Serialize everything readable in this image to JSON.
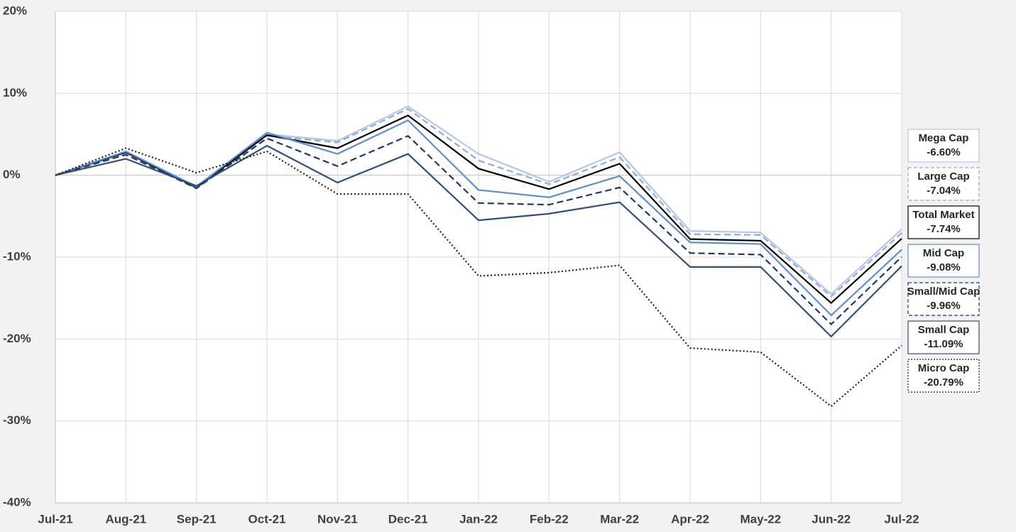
{
  "chart_data": {
    "type": "line",
    "categories": [
      "Jul-21",
      "Aug-21",
      "Sep-21",
      "Oct-21",
      "Nov-21",
      "Dec-21",
      "Jan-22",
      "Feb-22",
      "Mar-22",
      "Apr-22",
      "May-22",
      "Jun-22",
      "Jul-22"
    ],
    "ylim": [
      -40,
      20
    ],
    "yticks": [
      {
        "value": -40,
        "label": "-40%"
      },
      {
        "value": -30,
        "label": "-30%"
      },
      {
        "value": -20,
        "label": "-20%"
      },
      {
        "value": -10,
        "label": "-10%"
      },
      {
        "value": 0,
        "label": "0%"
      },
      {
        "value": 10,
        "label": "10%"
      },
      {
        "value": 20,
        "label": "20%"
      }
    ],
    "grid": true,
    "series": [
      {
        "name": "Mega Cap",
        "color": "#b4c7e7",
        "dash": "solid",
        "values": [
          0,
          2.7,
          -1.5,
          5.0,
          4.2,
          8.4,
          2.6,
          -0.8,
          2.8,
          -6.8,
          -7.0,
          -14.5,
          -6.6
        ],
        "value_labels": [
          null,
          null,
          null,
          null,
          null,
          null,
          null,
          null,
          null,
          null,
          null,
          null,
          "-6.60%"
        ]
      },
      {
        "name": "Large Cap",
        "color": "#8eaadb",
        "dash": "dashed",
        "values": [
          0,
          2.7,
          -1.6,
          4.8,
          4.0,
          8.1,
          1.8,
          -1.1,
          2.2,
          -7.2,
          -7.3,
          -14.8,
          -7.04
        ],
        "value_labels": [
          null,
          null,
          null,
          null,
          null,
          null,
          null,
          null,
          null,
          null,
          null,
          null,
          "-7.04%"
        ]
      },
      {
        "name": "Total Market",
        "color": "#000000",
        "dash": "solid",
        "values": [
          0,
          2.8,
          -1.5,
          4.9,
          3.3,
          7.3,
          0.8,
          -1.7,
          1.4,
          -7.8,
          -8.0,
          -15.6,
          -7.74
        ],
        "value_labels": [
          null,
          null,
          null,
          null,
          null,
          null,
          null,
          null,
          null,
          null,
          null,
          null,
          "-7.74%"
        ]
      },
      {
        "name": "Mid Cap",
        "color": "#5b8fd4",
        "dash": "solid",
        "values": [
          0,
          2.9,
          -1.4,
          5.2,
          2.6,
          6.7,
          -1.8,
          -2.7,
          -0.1,
          -8.2,
          -8.4,
          -17.1,
          -9.08
        ],
        "value_labels": [
          null,
          null,
          null,
          null,
          null,
          null,
          null,
          null,
          null,
          null,
          null,
          null,
          "-9.08%"
        ]
      },
      {
        "name": "Small/Mid Cap",
        "color": "#1f3864",
        "dash": "dashed",
        "values": [
          0,
          2.5,
          -1.6,
          4.5,
          1.1,
          4.8,
          -3.4,
          -3.6,
          -1.5,
          -9.5,
          -9.7,
          -18.2,
          -9.96
        ],
        "value_labels": [
          null,
          null,
          null,
          null,
          null,
          null,
          null,
          null,
          null,
          null,
          null,
          null,
          "-9.96%"
        ]
      },
      {
        "name": "Small Cap",
        "color": "#2f4f7f",
        "dash": "solid",
        "values": [
          0,
          2.0,
          -1.3,
          3.6,
          -0.9,
          2.6,
          -5.5,
          -4.7,
          -3.3,
          -11.2,
          -11.2,
          -19.7,
          -11.09
        ],
        "value_labels": [
          null,
          null,
          null,
          null,
          null,
          null,
          null,
          null,
          null,
          null,
          null,
          null,
          "-11.09%"
        ]
      },
      {
        "name": "Micro Cap",
        "color": "#222222",
        "dash": "dotted",
        "values": [
          0,
          3.3,
          0.3,
          2.9,
          -2.3,
          -2.3,
          -12.3,
          -11.9,
          -11.0,
          -21.1,
          -21.6,
          -28.2,
          -20.79
        ],
        "value_labels": [
          null,
          null,
          null,
          null,
          null,
          null,
          null,
          null,
          null,
          null,
          null,
          null,
          "-20.79%"
        ]
      }
    ]
  }
}
